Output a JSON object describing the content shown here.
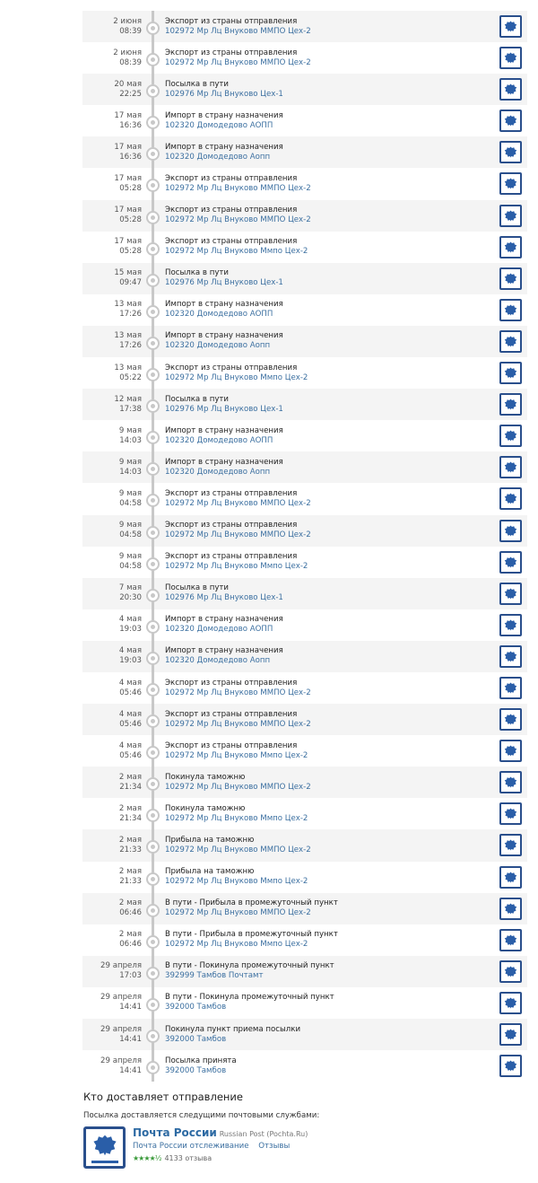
{
  "events": [
    {
      "date": "2 июня",
      "time": "08:39",
      "status": "Экспорт из страны отправления",
      "place": "102972 Мр Лц Внуково ММПО Цех-2"
    },
    {
      "date": "2 июня",
      "time": "08:39",
      "status": "Экспорт из страны отправления",
      "place": "102972 Мр Лц Внуково ММПО Цех-2"
    },
    {
      "date": "20 мая",
      "time": "22:25",
      "status": "Посылка в пути",
      "place": "102976 Мр Лц Внуково Цех-1"
    },
    {
      "date": "17 мая",
      "time": "16:36",
      "status": "Импорт в страну назначения",
      "place": "102320 Домодедово АОПП"
    },
    {
      "date": "17 мая",
      "time": "16:36",
      "status": "Импорт в страну назначения",
      "place": "102320 Домодедово Аопп"
    },
    {
      "date": "17 мая",
      "time": "05:28",
      "status": "Экспорт из страны отправления",
      "place": "102972 Мр Лц Внуково ММПО Цех-2"
    },
    {
      "date": "17 мая",
      "time": "05:28",
      "status": "Экспорт из страны отправления",
      "place": "102972 Мр Лц Внуково ММПО Цех-2"
    },
    {
      "date": "17 мая",
      "time": "05:28",
      "status": "Экспорт из страны отправления",
      "place": "102972 Мр Лц Внуково Ммпо Цех-2"
    },
    {
      "date": "15 мая",
      "time": "09:47",
      "status": "Посылка в пути",
      "place": "102976 Мр Лц Внуково Цех-1"
    },
    {
      "date": "13 мая",
      "time": "17:26",
      "status": "Импорт в страну назначения",
      "place": "102320 Домодедово АОПП"
    },
    {
      "date": "13 мая",
      "time": "17:26",
      "status": "Импорт в страну назначения",
      "place": "102320 Домодедово Аопп"
    },
    {
      "date": "13 мая",
      "time": "05:22",
      "status": "Экспорт из страны отправления",
      "place": "102972 Мр Лц Внуково Ммпо Цех-2"
    },
    {
      "date": "12 мая",
      "time": "17:38",
      "status": "Посылка в пути",
      "place": "102976 Мр Лц Внуково Цех-1"
    },
    {
      "date": "9 мая",
      "time": "14:03",
      "status": "Импорт в страну назначения",
      "place": "102320 Домодедово АОПП"
    },
    {
      "date": "9 мая",
      "time": "14:03",
      "status": "Импорт в страну назначения",
      "place": "102320 Домодедово Аопп"
    },
    {
      "date": "9 мая",
      "time": "04:58",
      "status": "Экспорт из страны отправления",
      "place": "102972 Мр Лц Внуково ММПО Цех-2"
    },
    {
      "date": "9 мая",
      "time": "04:58",
      "status": "Экспорт из страны отправления",
      "place": "102972 Мр Лц Внуково ММПО Цех-2"
    },
    {
      "date": "9 мая",
      "time": "04:58",
      "status": "Экспорт из страны отправления",
      "place": "102972 Мр Лц Внуково Ммпо Цех-2"
    },
    {
      "date": "7 мая",
      "time": "20:30",
      "status": "Посылка в пути",
      "place": "102976 Мр Лц Внуково Цех-1"
    },
    {
      "date": "4 мая",
      "time": "19:03",
      "status": "Импорт в страну назначения",
      "place": "102320 Домодедово АОПП"
    },
    {
      "date": "4 мая",
      "time": "19:03",
      "status": "Импорт в страну назначения",
      "place": "102320 Домодедово Аопп"
    },
    {
      "date": "4 мая",
      "time": "05:46",
      "status": "Экспорт из страны отправления",
      "place": "102972 Мр Лц Внуково ММПО Цех-2"
    },
    {
      "date": "4 мая",
      "time": "05:46",
      "status": "Экспорт из страны отправления",
      "place": "102972 Мр Лц Внуково ММПО Цех-2"
    },
    {
      "date": "4 мая",
      "time": "05:46",
      "status": "Экспорт из страны отправления",
      "place": "102972 Мр Лц Внуково Ммпо Цех-2"
    },
    {
      "date": "2 мая",
      "time": "21:34",
      "status": "Покинула таможню",
      "place": "102972 Мр Лц Внуково ММПО Цех-2"
    },
    {
      "date": "2 мая",
      "time": "21:34",
      "status": "Покинула таможню",
      "place": "102972 Мр Лц Внуково Ммпо Цех-2"
    },
    {
      "date": "2 мая",
      "time": "21:33",
      "status": "Прибыла на таможню",
      "place": "102972 Мр Лц Внуково ММПО Цех-2"
    },
    {
      "date": "2 мая",
      "time": "21:33",
      "status": "Прибыла на таможню",
      "place": "102972 Мр Лц Внуково Ммпо Цех-2"
    },
    {
      "date": "2 мая",
      "time": "06:46",
      "status": "В пути - Прибыла в промежуточный пункт",
      "place": "102972 Мр Лц Внуково ММПО Цех-2"
    },
    {
      "date": "2 мая",
      "time": "06:46",
      "status": "В пути - Прибыла в промежуточный пункт",
      "place": "102972 Мр Лц Внуково Ммпо Цех-2"
    },
    {
      "date": "29 апреля",
      "time": "17:03",
      "status": "В пути - Покинула промежуточный пункт",
      "place": "392999 Тамбов Почтамт"
    },
    {
      "date": "29 апреля",
      "time": "14:41",
      "status": "В пути - Покинула промежуточный пункт",
      "place": "392000 Тамбов"
    },
    {
      "date": "29 апреля",
      "time": "14:41",
      "status": "Покинула пункт приема посылки",
      "place": "392000 Тамбов"
    },
    {
      "date": "29 апреля",
      "time": "14:41",
      "status": "Посылка принята",
      "place": "392000 Тамбов"
    }
  ],
  "carrier_icon": "russian-post-logo-icon",
  "delivery": {
    "title": "Кто доставляет отправление",
    "subtitle": "Посылка доставляется следущими почтовыми службами:",
    "service": {
      "name": "Почта России",
      "name_en": "Russian Post (Pochta.Ru)",
      "tracking_link": "Почта России отслеживание",
      "reviews_link": "Отзывы",
      "rating": 4.5,
      "stars": "★★★★½",
      "reviews_count": "4133 отзыва"
    }
  },
  "colors": {
    "brand": "#2a4f8c",
    "link": "#3b6fa0",
    "stars": "#3a9a3a"
  }
}
